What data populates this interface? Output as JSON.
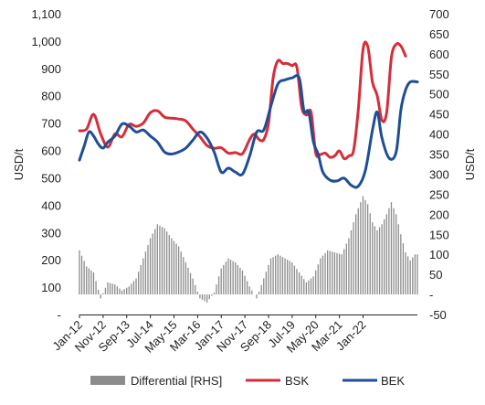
{
  "chart_data": {
    "type": "line",
    "title": "",
    "xlabel": "",
    "ylabel_left": "USD/t",
    "ylabel_right": "USD/t",
    "ylim_left": [
      0,
      1100
    ],
    "ylim_right": [
      -50,
      700
    ],
    "yticks_left": [
      "-",
      "100",
      "200",
      "300",
      "400",
      "500",
      "600",
      "700",
      "800",
      "900",
      "1,000",
      "1,100"
    ],
    "yticks_right": [
      "-50",
      "-",
      "50",
      "100",
      "150",
      "200",
      "250",
      "300",
      "350",
      "400",
      "450",
      "500",
      "550",
      "600",
      "650",
      "700"
    ],
    "x_tick_labels": [
      "Jan-12",
      "Nov-12",
      "Sep-13",
      "Jul-14",
      "May-15",
      "Mar-16",
      "Jan-17",
      "Nov-17",
      "Sep-18",
      "Jul-19",
      "May-20",
      "Mar-21",
      "Jan-22"
    ],
    "x_start": "Jan-12",
    "months": 126,
    "legend_position": "bottom",
    "grid": false,
    "series": [
      {
        "name": "BSK",
        "axis": "left",
        "color": "#d62d3b",
        "points": [
          [
            0,
            672
          ],
          [
            3,
            678
          ],
          [
            6,
            732
          ],
          [
            9,
            660
          ],
          [
            12,
            612
          ],
          [
            15,
            660
          ],
          [
            18,
            650
          ],
          [
            21,
            695
          ],
          [
            24,
            688
          ],
          [
            27,
            700
          ],
          [
            30,
            738
          ],
          [
            33,
            745
          ],
          [
            36,
            722
          ],
          [
            39,
            718
          ],
          [
            42,
            715
          ],
          [
            45,
            708
          ],
          [
            48,
            678
          ],
          [
            51,
            650
          ],
          [
            54,
            618
          ],
          [
            57,
            608
          ],
          [
            60,
            610
          ],
          [
            63,
            590
          ],
          [
            66,
            592
          ],
          [
            69,
            588
          ],
          [
            72,
            640
          ],
          [
            74,
            660
          ],
          [
            76,
            640
          ],
          [
            78,
            640
          ],
          [
            80,
            700
          ],
          [
            82,
            868
          ],
          [
            84,
            928
          ],
          [
            86,
            918
          ],
          [
            88,
            918
          ],
          [
            90,
            910
          ],
          [
            92,
            905
          ],
          [
            94,
            760
          ],
          [
            96,
            730
          ],
          [
            98,
            740
          ],
          [
            100,
            590
          ],
          [
            102,
            585
          ],
          [
            104,
            590
          ],
          [
            106,
            575
          ],
          [
            108,
            580
          ],
          [
            110,
            598
          ],
          [
            112,
            570
          ],
          [
            114,
            580
          ],
          [
            116,
            600
          ],
          [
            118,
            750
          ],
          [
            120,
            970
          ],
          [
            122,
            980
          ],
          [
            124,
            850
          ],
          [
            126,
            800
          ],
          [
            128,
            710
          ],
          [
            130,
            740
          ],
          [
            132,
            940
          ],
          [
            134,
            988
          ],
          [
            136,
            982
          ],
          [
            138,
            945
          ]
        ]
      },
      {
        "name": "BEK",
        "axis": "right",
        "color": "#1f4e95",
        "points": [
          [
            0,
            335
          ],
          [
            2,
            370
          ],
          [
            4,
            405
          ],
          [
            6,
            395
          ],
          [
            8,
            375
          ],
          [
            10,
            365
          ],
          [
            12,
            380
          ],
          [
            15,
            395
          ],
          [
            18,
            425
          ],
          [
            21,
            420
          ],
          [
            24,
            405
          ],
          [
            27,
            410
          ],
          [
            30,
            395
          ],
          [
            33,
            380
          ],
          [
            36,
            355
          ],
          [
            39,
            350
          ],
          [
            42,
            355
          ],
          [
            45,
            365
          ],
          [
            48,
            385
          ],
          [
            51,
            405
          ],
          [
            54,
            390
          ],
          [
            57,
            355
          ],
          [
            60,
            305
          ],
          [
            63,
            315
          ],
          [
            66,
            305
          ],
          [
            69,
            300
          ],
          [
            72,
            345
          ],
          [
            75,
            405
          ],
          [
            78,
            410
          ],
          [
            81,
            470
          ],
          [
            84,
            525
          ],
          [
            87,
            535
          ],
          [
            90,
            540
          ],
          [
            93,
            540
          ],
          [
            95,
            458
          ],
          [
            97,
            455
          ],
          [
            99,
            380
          ],
          [
            101,
            350
          ],
          [
            103,
            305
          ],
          [
            106,
            285
          ],
          [
            109,
            283
          ],
          [
            112,
            290
          ],
          [
            115,
            272
          ],
          [
            118,
            270
          ],
          [
            121,
            310
          ],
          [
            124,
            410
          ],
          [
            126,
            455
          ],
          [
            128,
            390
          ],
          [
            131,
            340
          ],
          [
            134,
            355
          ],
          [
            136,
            460
          ],
          [
            138,
            510
          ],
          [
            140,
            530
          ],
          [
            143,
            530
          ]
        ]
      },
      {
        "name": "Differential [RHS]",
        "type": "bar",
        "axis": "right",
        "color": "#8c8c8c",
        "points": [
          [
            0,
            110
          ],
          [
            3,
            70
          ],
          [
            6,
            55
          ],
          [
            9,
            -10
          ],
          [
            12,
            30
          ],
          [
            15,
            25
          ],
          [
            18,
            10
          ],
          [
            21,
            20
          ],
          [
            24,
            40
          ],
          [
            27,
            90
          ],
          [
            30,
            140
          ],
          [
            33,
            175
          ],
          [
            36,
            165
          ],
          [
            39,
            140
          ],
          [
            42,
            120
          ],
          [
            45,
            80
          ],
          [
            48,
            40
          ],
          [
            51,
            -10
          ],
          [
            54,
            -20
          ],
          [
            57,
            5
          ],
          [
            60,
            65
          ],
          [
            63,
            90
          ],
          [
            66,
            80
          ],
          [
            69,
            60
          ],
          [
            72,
            20
          ],
          [
            75,
            -10
          ],
          [
            78,
            40
          ],
          [
            81,
            90
          ],
          [
            84,
            100
          ],
          [
            87,
            90
          ],
          [
            90,
            80
          ],
          [
            93,
            55
          ],
          [
            96,
            30
          ],
          [
            99,
            45
          ],
          [
            102,
            90
          ],
          [
            105,
            110
          ],
          [
            108,
            105
          ],
          [
            111,
            100
          ],
          [
            114,
            140
          ],
          [
            117,
            200
          ],
          [
            120,
            245
          ],
          [
            122,
            225
          ],
          [
            124,
            180
          ],
          [
            126,
            160
          ],
          [
            128,
            175
          ],
          [
            130,
            200
          ],
          [
            132,
            230
          ],
          [
            134,
            200
          ],
          [
            136,
            150
          ],
          [
            138,
            105
          ],
          [
            140,
            85
          ],
          [
            142,
            100
          ]
        ]
      }
    ]
  }
}
